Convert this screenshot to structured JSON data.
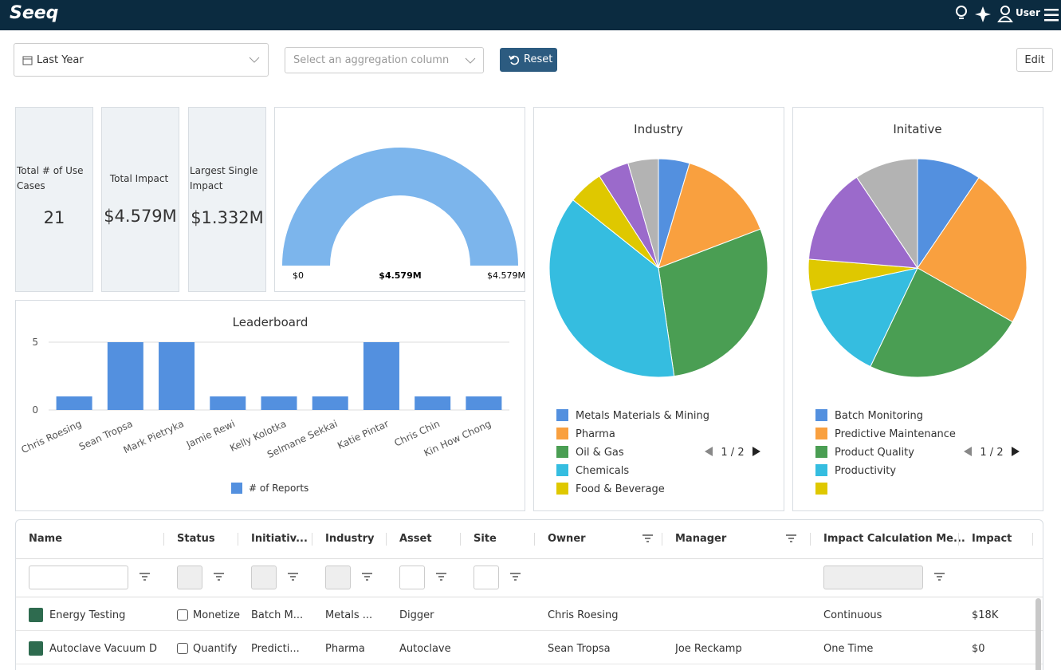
{
  "header": {
    "logo": "Seeq",
    "user": "User"
  },
  "controls": {
    "date_range": "Last Year",
    "aggregation_placeholder": "Select an aggregation column",
    "reset": "Reset",
    "edit": "Edit"
  },
  "kpis": [
    {
      "label": "Total # of Use Cases",
      "value": 21
    },
    {
      "label": "Total Impact",
      "value": "$4.579M"
    },
    {
      "label": "Largest Single Impact",
      "value": "$1.332M"
    }
  ],
  "chart_data": [
    {
      "type": "gauge",
      "values": [
        4579000
      ],
      "value_labels": [
        "$4.579M"
      ],
      "color": "#7cb5ec",
      "ylim": [
        0,
        4579000
      ],
      "yticks": [
        {
          "value": 0,
          "label": "$0"
        },
        {
          "value": 4579000,
          "label": "$4.579M"
        }
      ]
    },
    {
      "type": "bar",
      "title": "Leaderboard",
      "categories": [
        "Chris Roesing",
        "Sean Tropsa",
        "Mark Pietryka",
        "Jamie Rewi",
        "Kelly Kolotka",
        "Selmane Sekkai",
        "Katie Pintar",
        "Chris Chin",
        "Kin How Chong"
      ],
      "series": [
        {
          "name": "# of Reports",
          "color": "#5390df",
          "values": [
            1,
            5,
            5,
            1,
            1,
            1,
            5,
            1,
            1
          ]
        }
      ],
      "ylim": [
        0,
        5
      ],
      "yticks": [
        0,
        5
      ],
      "grid": true
    },
    {
      "type": "pie",
      "title": "Industry",
      "categories": [
        "Metals Materials & Mining",
        "Pharma",
        "Oil & Gas",
        "Chemicals",
        "Food & Beverage",
        null,
        null
      ],
      "values": [
        4.6,
        14.6,
        28.5,
        38.0,
        5.2,
        4.6,
        4.5
      ],
      "colors": [
        "#5390df",
        "#f9a03f",
        "#4a9e53",
        "#35bde0",
        "#dfc800",
        "#9b6acb",
        "#b3b3b3"
      ],
      "legend_page": "1 / 2"
    },
    {
      "type": "pie",
      "title": "Initative",
      "categories": [
        "Batch Monitoring",
        "Predictive Maintenance",
        "Product Quality",
        "Productivity",
        null,
        null,
        null
      ],
      "values": [
        9.5,
        23.7,
        23.9,
        14.5,
        4.7,
        14.3,
        9.4
      ],
      "colors": [
        "#5390df",
        "#f9a03f",
        "#4a9e53",
        "#35bde0",
        "#dfc800",
        "#9b6acb",
        "#b3b3b3"
      ],
      "legend_page": "1 / 2"
    }
  ],
  "table": {
    "columns": [
      "Name",
      "Status",
      "Initiativ...",
      "Industry",
      "Asset",
      "Site",
      "Owner",
      "Manager",
      "Impact Calculation Me...",
      "Impact"
    ],
    "rows": [
      [
        "Energy Testing",
        "Monetize",
        "Batch M...",
        "Metals ...",
        "Digger",
        null,
        "Chris Roesing",
        null,
        "Continuous",
        "$18K"
      ],
      [
        "Autoclave Vacuum D",
        "Quantify",
        "Predicti...",
        "Pharma",
        "Autoclave",
        null,
        "Sean Tropsa",
        "Joe Reckamp",
        "One Time",
        "$0"
      ]
    ]
  }
}
